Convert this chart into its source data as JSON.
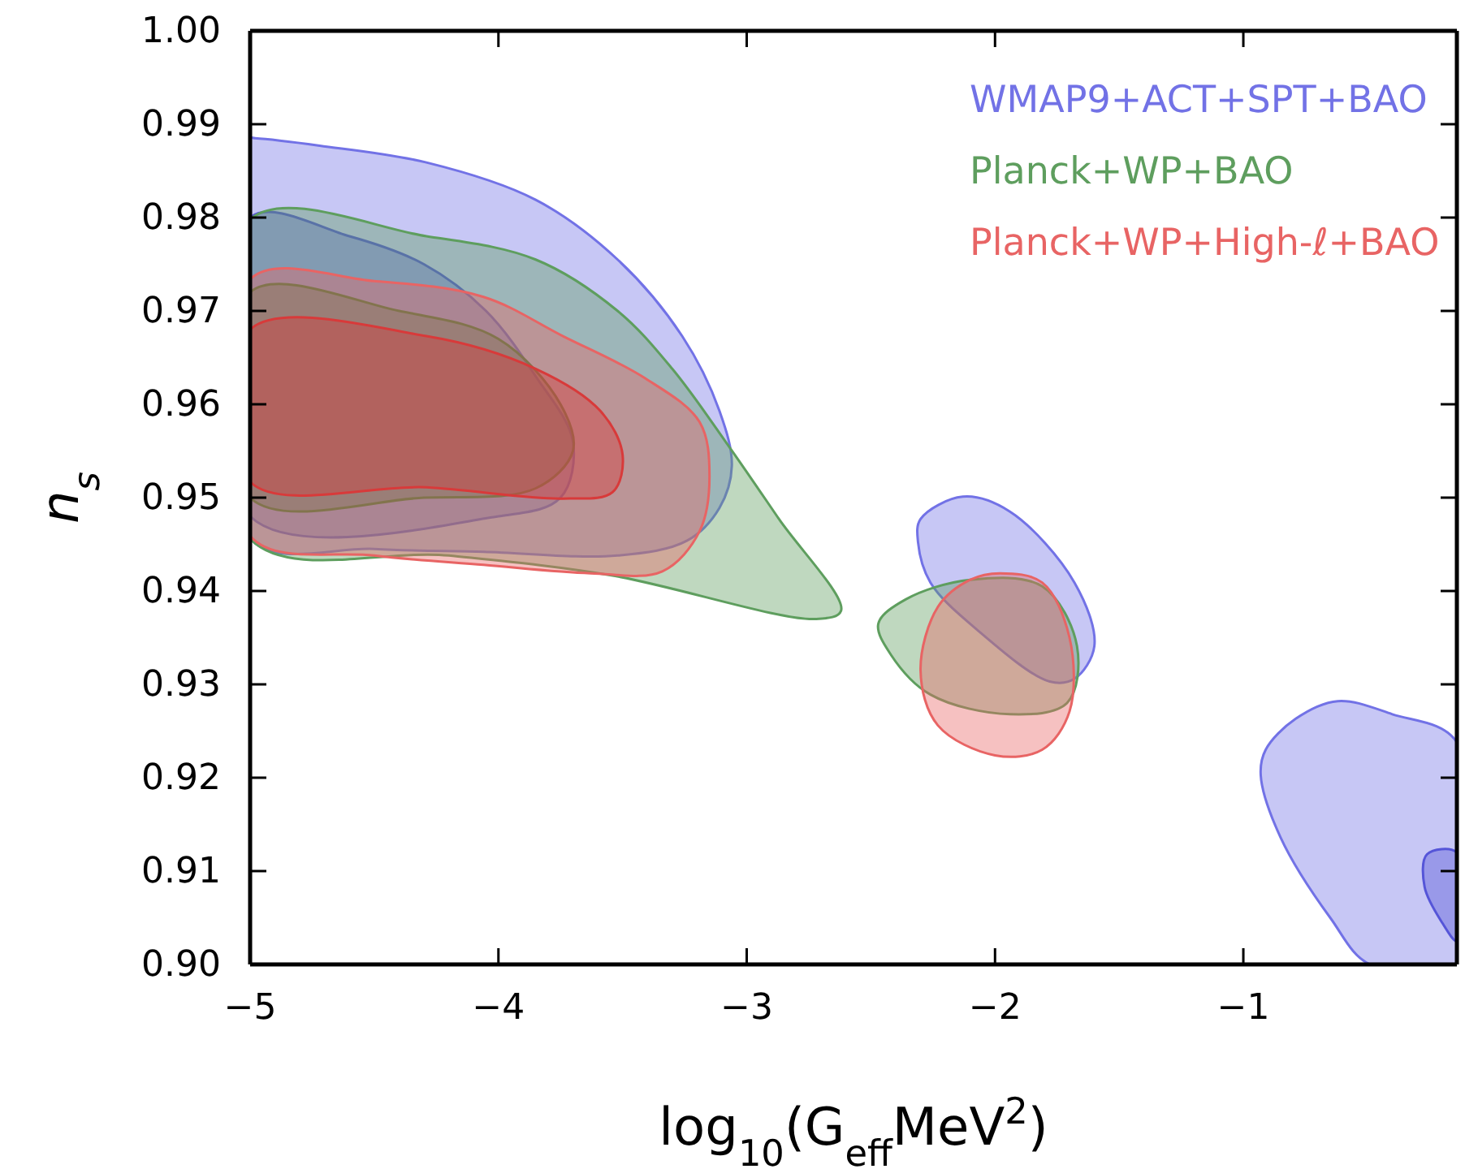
{
  "chart_data": {
    "type": "area",
    "xlabel": "log$_{10}$(G$_{eff}$MeV$^{2}$)",
    "ylabel": "n$_{s}$",
    "xlim": [
      -5,
      -0.14
    ],
    "ylim": [
      0.9,
      1.0
    ],
    "xticks": [
      {
        "value": -5,
        "label": "−5"
      },
      {
        "value": -4,
        "label": "−4"
      },
      {
        "value": -3,
        "label": "−3"
      },
      {
        "value": -2,
        "label": "−2"
      },
      {
        "value": -1,
        "label": "−1"
      }
    ],
    "yticks": [
      {
        "value": 0.9,
        "label": "0.90"
      },
      {
        "value": 0.91,
        "label": "0.91"
      },
      {
        "value": 0.92,
        "label": "0.92"
      },
      {
        "value": 0.93,
        "label": "0.93"
      },
      {
        "value": 0.94,
        "label": "0.94"
      },
      {
        "value": 0.95,
        "label": "0.95"
      },
      {
        "value": 0.96,
        "label": "0.96"
      },
      {
        "value": 0.97,
        "label": "0.97"
      },
      {
        "value": 0.98,
        "label": "0.98"
      },
      {
        "value": 0.99,
        "label": "0.99"
      },
      {
        "value": 1.0,
        "label": "1.00"
      }
    ],
    "legend": "top right",
    "grid": false,
    "series": [
      {
        "name": "WMAP9+ACT+SPT+BAO",
        "type": "area",
        "color": "#7272e6",
        "x": [
          -5,
          -4.98,
          -4.72,
          -4.29,
          -3.85,
          -3.52,
          -3.26,
          -3.11,
          -3.06,
          -3.11,
          -3.24,
          -3.52,
          -4.06,
          -4.5,
          -5
        ],
        "values": [
          0.9885,
          0.9885,
          0.9877,
          0.9859,
          0.9819,
          0.9755,
          0.9673,
          0.9593,
          0.9534,
          0.9489,
          0.9454,
          0.9438,
          0.9442,
          0.9445,
          0.9456
        ]
      },
      {
        "type": "area",
        "color": "#7272e6",
        "x": [
          -2.31,
          -2.3,
          -2.13,
          -1.94,
          -1.68,
          -1.6,
          -1.68,
          -1.78,
          -2.07,
          -2.26
        ],
        "values": [
          0.9452,
          0.9477,
          0.9501,
          0.9485,
          0.9409,
          0.9341,
          0.9306,
          0.9303,
          0.9358,
          0.9409
        ]
      },
      {
        "type": "area",
        "color": "#7272e6",
        "x": [
          -0.93,
          -0.91,
          -0.79,
          -0.62,
          -0.4,
          -0.14,
          -0.14,
          -0.49,
          -0.65,
          -0.85
        ],
        "values": [
          0.9203,
          0.923,
          0.9263,
          0.9282,
          0.9268,
          0.9238,
          0.9,
          0.9,
          0.905,
          0.9136
        ]
      },
      {
        "type": "area",
        "color": "#5555d8",
        "x": [
          -5,
          -4.6,
          -4.3,
          -4.05,
          -3.85,
          -3.7,
          -3.75,
          -4.0,
          -5
        ],
        "values": [
          0.98,
          0.978,
          0.975,
          0.97,
          0.963,
          0.956,
          0.95,
          0.948,
          0.948
        ]
      },
      {
        "type": "area",
        "color": "#5555d8",
        "x": [
          -0.27,
          -0.26,
          -0.14,
          -0.14,
          -0.2
        ],
        "values": [
          0.9083,
          0.9118,
          0.912,
          0.9025,
          0.9045
        ]
      },
      {
        "name": "Planck+WP+BAO",
        "type": "area",
        "color": "#5e9e5e",
        "x": [
          -5,
          -4.29,
          -3.85,
          -3.52,
          -3.3,
          -3.08,
          -2.87,
          -2.62,
          -2.72,
          -3.55,
          -4.2,
          -5
        ],
        "values": [
          0.9798,
          0.978,
          0.9755,
          0.97,
          0.9638,
          0.9558,
          0.9477,
          0.9379,
          0.937,
          0.9417,
          0.9438,
          0.9456
        ]
      },
      {
        "type": "area",
        "color": "#5e9e5e",
        "x": [
          -2.47,
          -2.36,
          -2.1,
          -1.81,
          -1.67,
          -1.71,
          -1.94,
          -2.26,
          -2.42
        ],
        "values": [
          0.9365,
          0.9391,
          0.9412,
          0.9405,
          0.9341,
          0.928,
          0.9268,
          0.9289,
          0.9332
        ]
      },
      {
        "type": "area",
        "color": "#3f7f3f",
        "x": [
          -5,
          -4.4,
          -4.0,
          -3.75,
          -3.7,
          -3.85,
          -4.3,
          -5
        ],
        "values": [
          0.972,
          0.97,
          0.967,
          0.96,
          0.955,
          0.951,
          0.95,
          0.95
        ]
      },
      {
        "name": "Planck+WP+High-ℓ+BAO",
        "type": "area",
        "color": "#e86464",
        "x": [
          -5,
          -4.5,
          -4.06,
          -3.74,
          -3.41,
          -3.19,
          -3.15,
          -3.19,
          -3.34,
          -3.63,
          -4.06,
          -4.5,
          -5
        ],
        "values": [
          0.9734,
          0.9732,
          0.9715,
          0.9673,
          0.9628,
          0.9581,
          0.9523,
          0.9464,
          0.9421,
          0.9419,
          0.9428,
          0.9438,
          0.9459
        ]
      },
      {
        "type": "area",
        "color": "#e86464",
        "x": [
          -2.1,
          -1.98,
          -1.81,
          -1.7,
          -1.7,
          -1.81,
          -2.0,
          -2.23,
          -2.3,
          -2.23
        ],
        "values": [
          0.9412,
          0.9419,
          0.9409,
          0.935,
          0.9271,
          0.923,
          0.9224,
          0.9256,
          0.9315,
          0.9383
        ]
      },
      {
        "type": "area",
        "color": "#d83a3a",
        "x": [
          -5,
          -4.29,
          -3.85,
          -3.59,
          -3.5,
          -3.54,
          -3.74,
          -4.29,
          -5
        ],
        "values": [
          0.968,
          0.9673,
          0.9638,
          0.9593,
          0.9546,
          0.9506,
          0.9499,
          0.9511,
          0.9517
        ]
      }
    ]
  }
}
